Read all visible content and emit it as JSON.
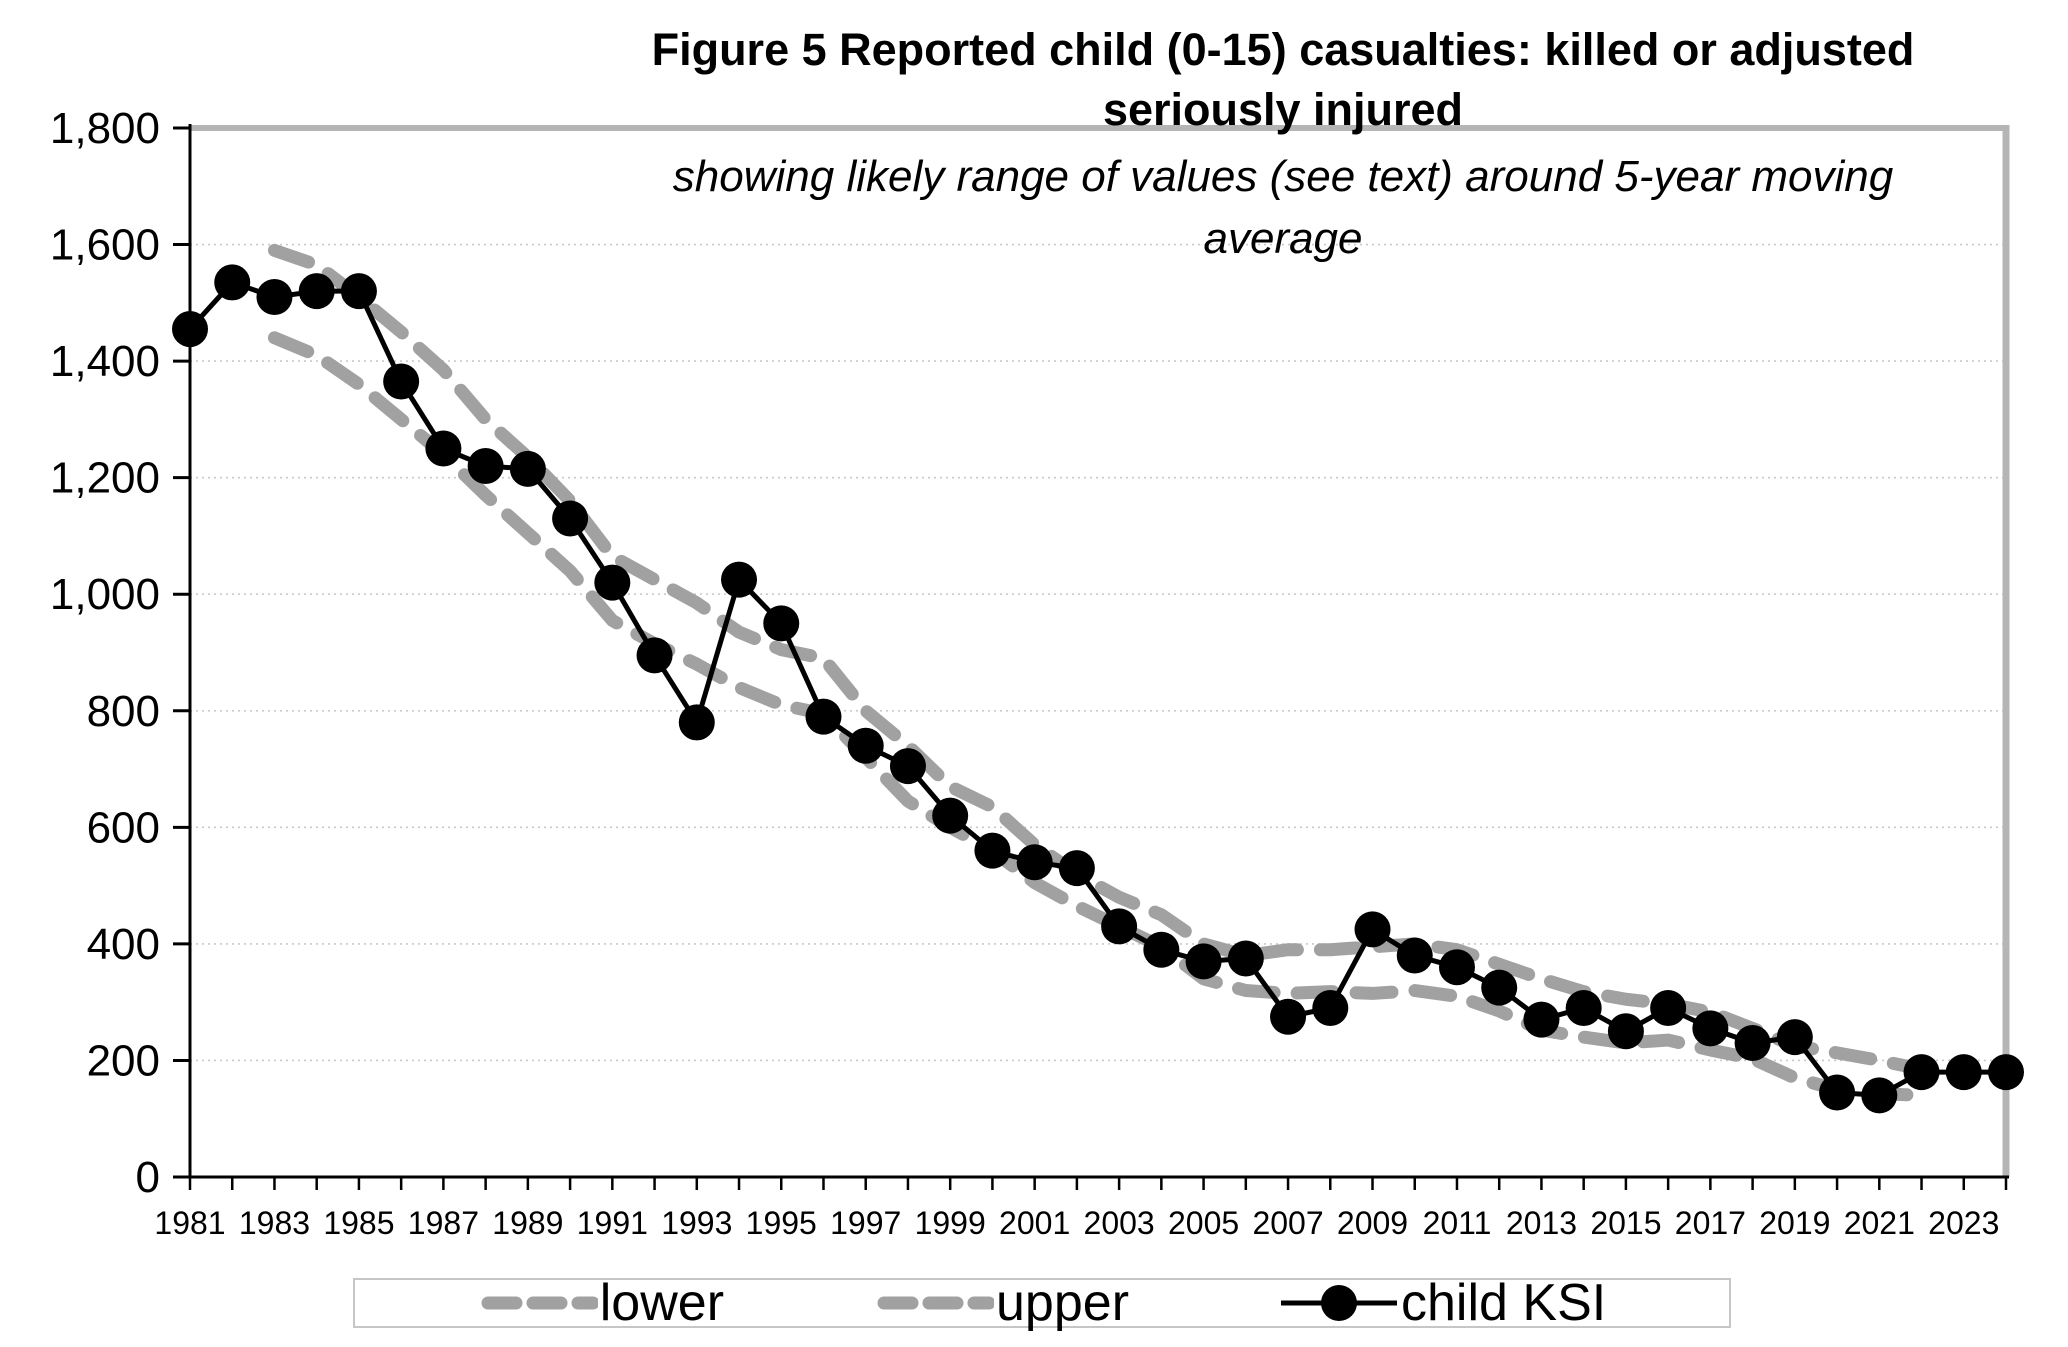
{
  "figure": {
    "title_line1": "Figure 5 Reported child (0-15) casualties: killed or adjusted",
    "title_line2": "seriously injured",
    "subtitle_line1": "showing likely range of values (see text) around 5-year moving",
    "subtitle_line2": "average"
  },
  "legend": {
    "items": [
      {
        "label": "lower",
        "type": "dashed"
      },
      {
        "label": "upper",
        "type": "dashed"
      },
      {
        "label": "child KSI",
        "type": "line-marker"
      }
    ]
  },
  "colors": {
    "series_black": "#000000",
    "dashed_gray": "#a1a1a1",
    "border_gray": "#b5b5b5",
    "gridline_gray": "#c9c9c9",
    "axis_black": "#000000"
  },
  "chart_data": {
    "type": "line",
    "title": "Figure 5 Reported child (0-15) casualties: killed or adjusted seriously injured",
    "subtitle": "showing likely range of values (see text) around 5-year moving average",
    "xlabel": "",
    "ylabel": "",
    "x_range": [
      1981,
      2024
    ],
    "ylim": [
      0,
      1800
    ],
    "grid": "horizontal-dotted",
    "legend_position": "bottom",
    "y_ticks": {
      "values": [
        0,
        200,
        400,
        600,
        800,
        1000,
        1200,
        1400,
        1600,
        1800
      ],
      "labels": [
        "0",
        "200",
        "400",
        "600",
        "800",
        "1,000",
        "1,200",
        "1,400",
        "1,600",
        "1,800"
      ]
    },
    "x_tick_labels": [
      "1981",
      "1983",
      "1985",
      "1987",
      "1989",
      "1991",
      "1993",
      "1995",
      "1997",
      "1999",
      "2001",
      "2003",
      "2005",
      "2007",
      "2009",
      "2011",
      "2013",
      "2015",
      "2017",
      "2019",
      "2021",
      "2023"
    ],
    "x_minor_tick_every_year": true,
    "series": [
      {
        "name": "lower",
        "style": "dashed",
        "color": "#a1a1a1",
        "start_year": 1983,
        "values": [
          1440,
          1410,
          1360,
          1300,
          1240,
          1170,
          1105,
          1040,
          955,
          915,
          880,
          840,
          810,
          795,
          720,
          645,
          600,
          560,
          505,
          465,
          430,
          395,
          340,
          320,
          315,
          318,
          315,
          320,
          310,
          285,
          252,
          240,
          230,
          235,
          218,
          203,
          170,
          150,
          143,
          140
        ]
      },
      {
        "name": "upper",
        "style": "dashed",
        "color": "#a1a1a1",
        "start_year": 1983,
        "values": [
          1590,
          1565,
          1510,
          1450,
          1385,
          1300,
          1235,
          1160,
          1065,
          1025,
          985,
          935,
          905,
          890,
          800,
          740,
          670,
          635,
          570,
          520,
          480,
          450,
          400,
          380,
          390,
          390,
          395,
          400,
          390,
          365,
          340,
          318,
          305,
          297,
          283,
          255,
          225,
          213,
          200,
          185
        ]
      },
      {
        "name": "child KSI",
        "style": "solid-marker",
        "color": "#000000",
        "start_year": 1981,
        "values": [
          1455,
          1535,
          1510,
          1520,
          1520,
          1365,
          1250,
          1220,
          1215,
          1130,
          1020,
          895,
          780,
          1025,
          950,
          790,
          740,
          705,
          620,
          560,
          540,
          530,
          430,
          390,
          370,
          375,
          275,
          290,
          425,
          380,
          360,
          325,
          270,
          290,
          250,
          290,
          255,
          230,
          240,
          145,
          140,
          180,
          180,
          180
        ]
      }
    ]
  }
}
